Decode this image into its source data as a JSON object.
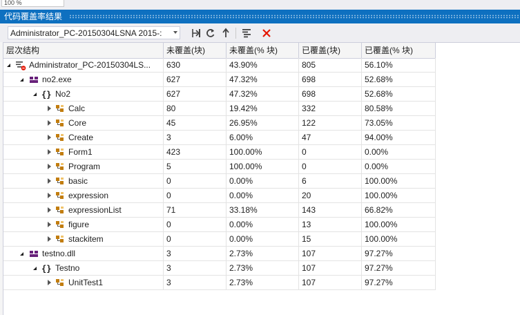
{
  "top": {
    "zoom": "100 %"
  },
  "window": {
    "title": "代码覆盖率结果"
  },
  "toolbar": {
    "session": "Administrator_PC-20150304LSNA 2015-:",
    "buttons": [
      {
        "name": "import-results-button",
        "icon": "import-icon"
      },
      {
        "name": "refresh-button",
        "icon": "refresh-icon"
      },
      {
        "name": "export-button",
        "icon": "export-icon"
      },
      {
        "name": "add-coloring-button",
        "icon": "coloring-icon"
      },
      {
        "name": "remove-button",
        "icon": "remove-icon"
      }
    ]
  },
  "columns": [
    "层次结构",
    "未覆盖(块)",
    "未覆盖(% 块)",
    "已覆盖(块)",
    "已覆盖(% 块)"
  ],
  "rows": [
    {
      "name": "Administrator_PC-20150304LS...",
      "level": 0,
      "expanded": true,
      "icon": "coverage-session-icon",
      "values": [
        "630",
        "43.90%",
        "805",
        "56.10%"
      ]
    },
    {
      "name": "no2.exe",
      "level": 1,
      "expanded": true,
      "icon": "assembly-icon",
      "values": [
        "627",
        "47.32%",
        "698",
        "52.68%"
      ]
    },
    {
      "name": "No2",
      "level": 2,
      "expanded": true,
      "icon": "namespace-icon",
      "values": [
        "627",
        "47.32%",
        "698",
        "52.68%"
      ]
    },
    {
      "name": "Calc",
      "level": 3,
      "expanded": false,
      "icon": "class-icon",
      "values": [
        "80",
        "19.42%",
        "332",
        "80.58%"
      ]
    },
    {
      "name": "Core",
      "level": 3,
      "expanded": false,
      "icon": "class-icon",
      "values": [
        "45",
        "26.95%",
        "122",
        "73.05%"
      ]
    },
    {
      "name": "Create",
      "level": 3,
      "expanded": false,
      "icon": "class-icon",
      "values": [
        "3",
        "6.00%",
        "47",
        "94.00%"
      ]
    },
    {
      "name": "Form1",
      "level": 3,
      "expanded": false,
      "icon": "class-icon",
      "values": [
        "423",
        "100.00%",
        "0",
        "0.00%"
      ]
    },
    {
      "name": "Program",
      "level": 3,
      "expanded": false,
      "icon": "class-icon",
      "values": [
        "5",
        "100.00%",
        "0",
        "0.00%"
      ]
    },
    {
      "name": "basic",
      "level": 3,
      "expanded": false,
      "icon": "class-icon",
      "values": [
        "0",
        "0.00%",
        "6",
        "100.00%"
      ]
    },
    {
      "name": "expression",
      "level": 3,
      "expanded": false,
      "icon": "class-icon",
      "values": [
        "0",
        "0.00%",
        "20",
        "100.00%"
      ]
    },
    {
      "name": "expressionList",
      "level": 3,
      "expanded": false,
      "icon": "class-icon",
      "values": [
        "71",
        "33.18%",
        "143",
        "66.82%"
      ]
    },
    {
      "name": "figure",
      "level": 3,
      "expanded": false,
      "icon": "class-icon",
      "values": [
        "0",
        "0.00%",
        "13",
        "100.00%"
      ]
    },
    {
      "name": "stackitem",
      "level": 3,
      "expanded": false,
      "icon": "class-icon",
      "values": [
        "0",
        "0.00%",
        "15",
        "100.00%"
      ]
    },
    {
      "name": "testno.dll",
      "level": 1,
      "expanded": true,
      "icon": "assembly-icon",
      "values": [
        "3",
        "2.73%",
        "107",
        "97.27%"
      ]
    },
    {
      "name": "Testno",
      "level": 2,
      "expanded": true,
      "icon": "namespace-icon",
      "values": [
        "3",
        "2.73%",
        "107",
        "97.27%"
      ]
    },
    {
      "name": "UnitTest1",
      "level": 3,
      "expanded": false,
      "icon": "class-icon",
      "values": [
        "3",
        "2.73%",
        "107",
        "97.27%"
      ]
    }
  ],
  "colors": {
    "titlebar": "#0e70c0",
    "assembly": "#68217a",
    "class": "#c27d0e",
    "remove": "#e51400"
  }
}
